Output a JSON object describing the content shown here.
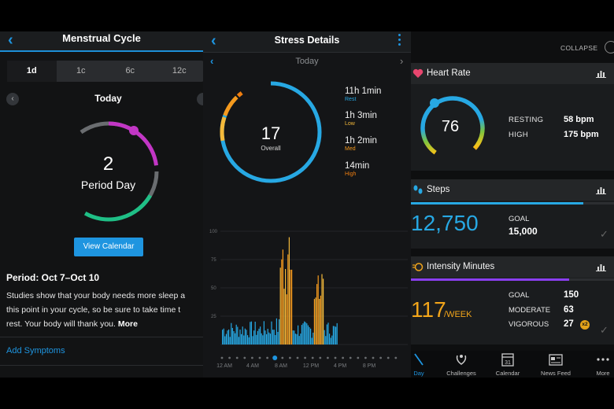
{
  "colors": {
    "blue": "#1e95e0",
    "rest": "#27a8e3",
    "low": "#f4b93a",
    "med": "#f59a1e",
    "high": "#ef7e10",
    "period": "#c236c5",
    "fertile": "#1fbf86"
  },
  "menstrual": {
    "title": "Menstrual Cycle",
    "tabs": [
      "1d",
      "1c",
      "6c",
      "12c"
    ],
    "active_tab": 0,
    "today": "Today",
    "big_number": "2",
    "big_label": "Period Day",
    "view_calendar": "View Calendar",
    "period_heading": "Period: Oct 7–Oct 10",
    "body_lines": [
      "Studies show that your body needs more sleep a",
      "this point in your cycle, so be sure to take time t",
      "rest. Your body will thank you."
    ],
    "more": "More",
    "add_symptoms": "Add Symptoms"
  },
  "stress": {
    "title": "Stress Details",
    "today": "Today",
    "score": "17",
    "score_label": "Overall",
    "breakdown": [
      {
        "value": "11h 1min",
        "category": "Rest",
        "color": "#27a8e3"
      },
      {
        "value": "1h 3min",
        "category": "Low",
        "color": "#f4b93a"
      },
      {
        "value": "1h 2min",
        "category": "Med",
        "color": "#f59a1e"
      },
      {
        "value": "14min",
        "category": "High",
        "color": "#ef7e10"
      }
    ],
    "y_ticks": [
      "100",
      "75",
      "50",
      "25"
    ],
    "x_ticks": [
      "12 AM",
      "4 AM",
      "8 AM",
      "12 PM",
      "4 PM",
      "8 PM"
    ]
  },
  "dashboard": {
    "collapse": "COLLAPSE",
    "heart_rate": {
      "title": "Heart Rate",
      "current": "76",
      "resting_label": "RESTING",
      "resting_value": "58 bpm",
      "high_label": "HIGH",
      "high_value": "175 bpm"
    },
    "steps": {
      "title": "Steps",
      "value": "12,750",
      "goal_label": "GOAL",
      "goal_value": "15,000",
      "progress": 0.85
    },
    "intensity": {
      "title": "Intensity Minutes",
      "value": "117",
      "unit": "/WEEK",
      "goal_label": "GOAL",
      "goal_value": "150",
      "moderate_label": "MODERATE",
      "moderate_value": "63",
      "vigorous_label": "VIGOROUS",
      "vigorous_value": "27",
      "badge": "x2",
      "progress": 0.78
    },
    "tabs": [
      "Day",
      "Challenges",
      "Calendar",
      "News Feed",
      "More"
    ],
    "calendar_day": "31"
  }
}
